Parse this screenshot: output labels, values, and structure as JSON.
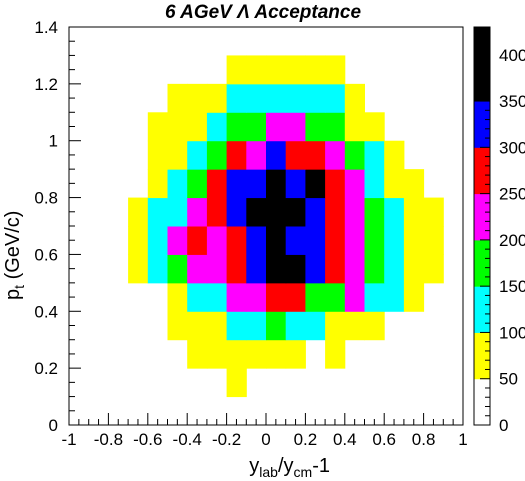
{
  "chart_data": {
    "type": "heatmap",
    "title": "6 AGeV Λ Acceptance",
    "xlabel": {
      "main": "y",
      "sub1": "lab",
      "mid": "/y",
      "sub2": "cm",
      "tail": "-1"
    },
    "ylabel": {
      "main": "p",
      "sub": "t",
      "tail": " (GeV/c)"
    },
    "xlim": [
      -1,
      1
    ],
    "ylim": [
      0,
      1.4
    ],
    "x_ticks": [
      "-1",
      "-0.8",
      "-0.6",
      "-0.4",
      "-0.2",
      "0",
      "0.2",
      "0.4",
      "0.6",
      "0.8",
      "1"
    ],
    "y_ticks": [
      "0",
      "0.2",
      "0.4",
      "0.6",
      "0.8",
      "1",
      "1.2",
      "1.4"
    ],
    "x_bins": {
      "start": -1,
      "width": 0.1,
      "count": 20
    },
    "y_bins": {
      "start": 0,
      "width": 0.1,
      "count": 14
    },
    "color_scale": {
      "ticks": [
        "0",
        "50",
        "100",
        "150",
        "200",
        "250",
        "300",
        "350",
        "400"
      ],
      "levels": [
        {
          "from": 0,
          "to": 50,
          "color": "#ffffff"
        },
        {
          "from": 50,
          "to": 100,
          "color": "#ffff00"
        },
        {
          "from": 100,
          "to": 150,
          "color": "#00ffff"
        },
        {
          "from": 150,
          "to": 200,
          "color": "#00ff00"
        },
        {
          "from": 200,
          "to": 250,
          "color": "#ff00ff"
        },
        {
          "from": 250,
          "to": 300,
          "color": "#ff0000"
        },
        {
          "from": 300,
          "to": 350,
          "color": "#0000ff"
        },
        {
          "from": 350,
          "to": 430,
          "color": "#000000"
        }
      ],
      "max": 430
    },
    "note": "Cell counts estimated from color levels (value at level midpoint). Rows listed from y bin 0.0-0.1 upward; columns from x = -1.0 upward in 0.1 steps.",
    "cells": [
      [
        0,
        0,
        0,
        0,
        0,
        0,
        0,
        0,
        0,
        0,
        0,
        0,
        0,
        0,
        0,
        0,
        0,
        0,
        0,
        0
      ],
      [
        0,
        0,
        0,
        0,
        0,
        0,
        0,
        0,
        75,
        0,
        0,
        0,
        0,
        0,
        0,
        0,
        0,
        0,
        0,
        0
      ],
      [
        0,
        0,
        0,
        0,
        0,
        0,
        75,
        75,
        75,
        75,
        75,
        75,
        0,
        75,
        0,
        0,
        0,
        0,
        0,
        0
      ],
      [
        0,
        0,
        0,
        0,
        0,
        75,
        75,
        75,
        125,
        125,
        175,
        125,
        125,
        75,
        75,
        75,
        0,
        0,
        0,
        0
      ],
      [
        0,
        0,
        0,
        0,
        0,
        75,
        125,
        125,
        225,
        225,
        275,
        275,
        175,
        175,
        225,
        125,
        125,
        75,
        0,
        0
      ],
      [
        0,
        0,
        0,
        75,
        125,
        175,
        225,
        225,
        275,
        325,
        375,
        375,
        325,
        275,
        225,
        175,
        125,
        75,
        75,
        0
      ],
      [
        0,
        0,
        0,
        75,
        125,
        225,
        275,
        225,
        275,
        325,
        375,
        325,
        325,
        275,
        225,
        175,
        125,
        75,
        75,
        0
      ],
      [
        0,
        0,
        0,
        75,
        125,
        125,
        225,
        275,
        325,
        375,
        375,
        375,
        325,
        275,
        225,
        175,
        125,
        75,
        75,
        0
      ],
      [
        0,
        0,
        0,
        0,
        75,
        125,
        175,
        275,
        325,
        325,
        375,
        325,
        375,
        275,
        225,
        125,
        75,
        75,
        0,
        0
      ],
      [
        0,
        0,
        0,
        0,
        75,
        75,
        125,
        175,
        275,
        225,
        325,
        275,
        275,
        225,
        175,
        125,
        75,
        0,
        0,
        0
      ],
      [
        0,
        0,
        0,
        0,
        75,
        75,
        75,
        125,
        175,
        175,
        225,
        225,
        175,
        175,
        75,
        75,
        0,
        0,
        0,
        0
      ],
      [
        0,
        0,
        0,
        0,
        0,
        75,
        75,
        75,
        125,
        125,
        125,
        125,
        125,
        125,
        75,
        0,
        0,
        0,
        0,
        0
      ],
      [
        0,
        0,
        0,
        0,
        0,
        0,
        0,
        0,
        75,
        75,
        75,
        75,
        75,
        75,
        0,
        0,
        0,
        0,
        0,
        0
      ],
      [
        0,
        0,
        0,
        0,
        0,
        0,
        0,
        0,
        0,
        0,
        0,
        0,
        0,
        0,
        0,
        0,
        0,
        0,
        0,
        0
      ]
    ]
  }
}
